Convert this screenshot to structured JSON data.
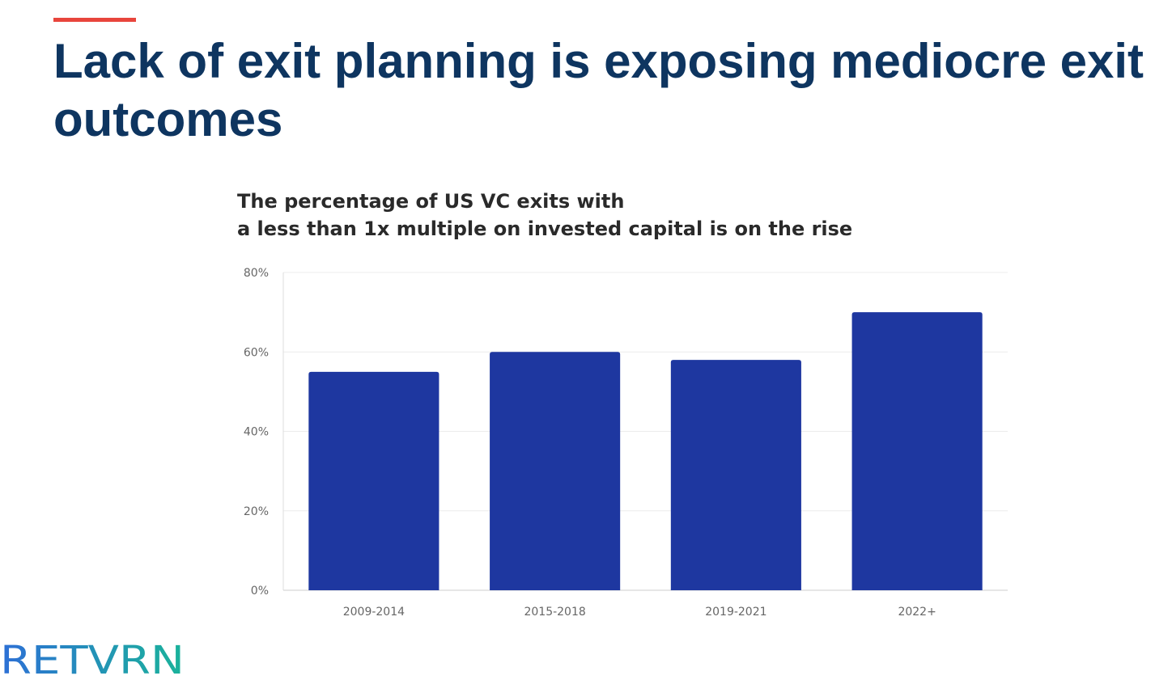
{
  "slide": {
    "title": "Lack of exit planning is exposing mediocre exit outcomes",
    "accent_color": "#e8453c",
    "title_color": "#0e3560"
  },
  "chart_data": {
    "type": "bar",
    "title_lines": [
      "The percentage of US VC exits with",
      "a less than 1x multiple on invested capital is on the rise"
    ],
    "categories": [
      "2009-2014",
      "2015-2018",
      "2019-2021",
      "2022+"
    ],
    "values": [
      55,
      60,
      58,
      70
    ],
    "unit": "%",
    "ylim": [
      0,
      80
    ],
    "yticks": [
      0,
      20,
      40,
      60,
      80
    ],
    "ytick_labels": [
      "0%",
      "20%",
      "40%",
      "60%",
      "80%"
    ],
    "grid": true,
    "bar_color": "#1e37a0",
    "xlabel": "",
    "ylabel": ""
  },
  "logo": {
    "text": "RETVRN",
    "color_start": "#2d6fd6",
    "color_end": "#1ab39a"
  }
}
